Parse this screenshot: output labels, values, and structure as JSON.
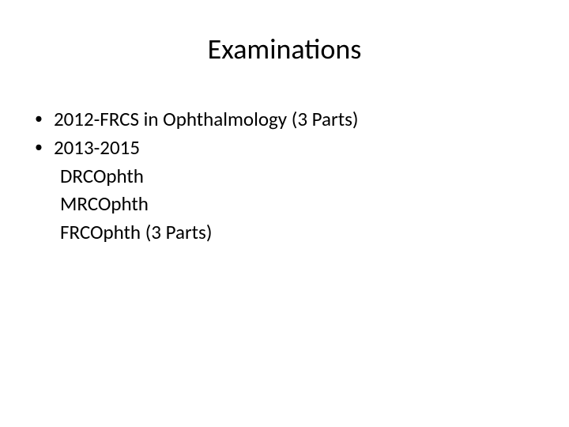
{
  "slide": {
    "title": "Examinations",
    "title_fontsize": 36,
    "body_fontsize": 25,
    "background_color": "#ffffff",
    "text_color": "#000000",
    "bullets": [
      {
        "text": "2012-FRCS in Ophthalmology (3 Parts)"
      },
      {
        "text": "2013-2015"
      }
    ],
    "sublines": [
      {
        "text": "DRCOphth"
      },
      {
        "text": "MRCOphth"
      },
      {
        "text": "FRCOphth (3 Parts)"
      }
    ],
    "bullet_char": "•"
  }
}
